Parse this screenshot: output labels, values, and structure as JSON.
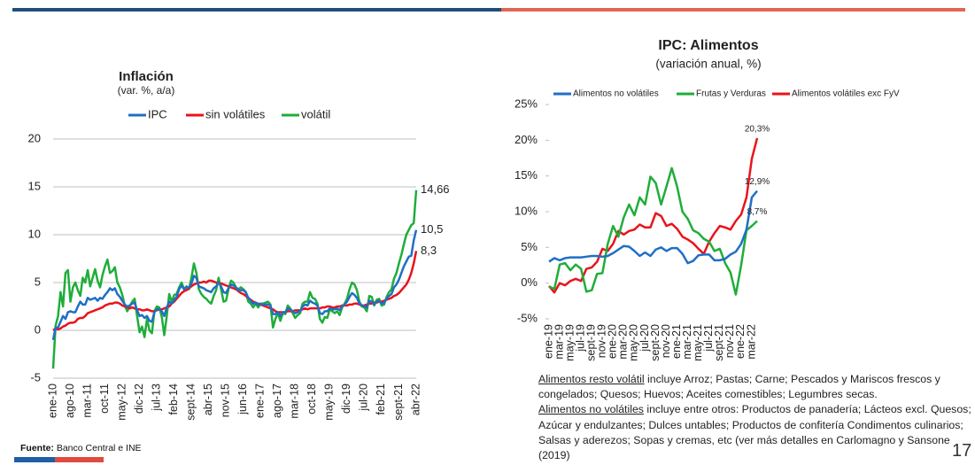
{
  "chart_data": [
    {
      "type": "line",
      "title": "Inflación",
      "subtitle": "(var. %, a/a)",
      "categories": [
        "ene-10",
        null,
        null,
        null,
        null,
        null,
        null,
        "ago-10",
        null,
        null,
        null,
        null,
        null,
        null,
        "mar-11",
        null,
        null,
        null,
        null,
        null,
        null,
        "oct-11",
        null,
        null,
        null,
        null,
        null,
        null,
        "may-12",
        null,
        null,
        null,
        null,
        null,
        null,
        "dic-12",
        null,
        null,
        null,
        null,
        null,
        null,
        "jul-13",
        null,
        null,
        null,
        null,
        null,
        null,
        "feb-14",
        null,
        null,
        null,
        null,
        null,
        null,
        "sept-14",
        null,
        null,
        null,
        null,
        null,
        null,
        "abr-15",
        null,
        null,
        null,
        null,
        null,
        null,
        "nov-15",
        null,
        null,
        null,
        null,
        null,
        null,
        "jun-16",
        null,
        null,
        null,
        null,
        null,
        null,
        "ene-17",
        null,
        null,
        null,
        null,
        null,
        null,
        "ago-17",
        null,
        null,
        null,
        null,
        null,
        null,
        "mar-18",
        null,
        null,
        null,
        null,
        null,
        null,
        "oct-18",
        null,
        null,
        null,
        null,
        null,
        null,
        "may-19",
        null,
        null,
        null,
        null,
        null,
        null,
        "dic-19",
        null,
        null,
        null,
        null,
        null,
        null,
        "jul-20",
        null,
        null,
        null,
        null,
        null,
        null,
        "feb-21",
        null,
        null,
        null,
        null,
        null,
        null,
        "sept-21",
        null,
        null,
        null,
        null,
        null,
        null,
        "abr-22"
      ],
      "series": [
        {
          "name": "IPC",
          "color": "#1f6fc5",
          "values": [
            -1.0,
            0.3,
            0.3,
            0.9,
            1.5,
            1.2,
            1.9,
            2.0,
            1.9,
            1.9,
            2.5,
            3.0,
            2.7,
            2.7,
            3.4,
            3.2,
            3.3,
            3.4,
            3.1,
            3.4,
            3.3,
            3.7,
            4.0,
            4.4,
            4.2,
            4.4,
            3.8,
            3.5,
            3.1,
            2.7,
            2.5,
            2.6,
            2.8,
            2.9,
            2.1,
            1.5,
            1.6,
            1.3,
            1.5,
            1.0,
            0.9,
            1.9,
            2.2,
            2.2,
            2.0,
            1.5,
            2.4,
            3.0,
            2.8,
            3.2,
            3.5,
            4.3,
            4.7,
            4.3,
            4.5,
            4.5,
            4.9,
            5.7,
            5.5,
            4.6,
            4.5,
            4.4,
            4.2,
            4.1,
            4.0,
            4.4,
            4.6,
            5.0,
            4.6,
            4.0,
            3.9,
            4.4,
            4.8,
            4.7,
            4.5,
            4.2,
            4.2,
            4.2,
            4.0,
            3.4,
            3.1,
            2.8,
            2.9,
            2.7,
            2.8,
            2.7,
            2.7,
            2.7,
            2.6,
            1.7,
            1.7,
            1.9,
            1.5,
            1.9,
            1.9,
            2.3,
            2.2,
            2.0,
            1.8,
            1.9,
            2.0,
            2.5,
            2.7,
            2.6,
            3.1,
            2.9,
            2.8,
            2.6,
            1.8,
            1.7,
            2.0,
            2.0,
            2.3,
            2.2,
            2.2,
            2.3,
            2.1,
            2.5,
            2.7,
            3.0,
            3.5,
            3.9,
            3.7,
            3.4,
            2.8,
            2.6,
            2.5,
            2.4,
            3.1,
            3.0,
            2.7,
            3.0,
            3.1,
            2.8,
            2.9,
            3.3,
            3.6,
            3.8,
            4.5,
            4.8,
            5.3,
            6.0,
            6.7,
            7.2,
            7.7,
            7.8,
            9.4,
            10.5
          ],
          "value_labels": {
            "147": "10,5"
          }
        },
        {
          "name": "sin volátiles",
          "color": "#e8141b",
          "values": [
            0.0,
            0.2,
            0.1,
            0.2,
            0.4,
            0.5,
            0.7,
            0.8,
            0.8,
            0.9,
            1.2,
            1.3,
            1.3,
            1.5,
            1.8,
            1.9,
            2.0,
            2.1,
            2.2,
            2.3,
            2.4,
            2.6,
            2.7,
            2.8,
            2.8,
            2.9,
            2.9,
            2.8,
            2.6,
            2.5,
            2.4,
            2.3,
            2.4,
            2.3,
            2.2,
            2.2,
            2.1,
            2.1,
            2.2,
            2.1,
            2.0,
            2.0,
            2.1,
            2.2,
            2.2,
            2.3,
            2.4,
            2.5,
            2.8,
            3.0,
            3.3,
            3.6,
            3.9,
            4.1,
            4.2,
            4.4,
            4.6,
            4.8,
            4.9,
            5.0,
            5.0,
            5.1,
            5.0,
            5.2,
            5.2,
            5.1,
            5.0,
            4.9,
            4.9,
            4.8,
            4.7,
            4.6,
            4.5,
            4.4,
            4.3,
            4.1,
            3.9,
            3.8,
            3.6,
            3.4,
            3.2,
            3.0,
            2.9,
            2.8,
            2.7,
            2.6,
            2.5,
            2.4,
            2.3,
            2.2,
            2.0,
            1.9,
            1.9,
            1.9,
            1.9,
            2.0,
            2.0,
            2.0,
            2.1,
            2.1,
            2.1,
            2.2,
            2.3,
            2.2,
            2.3,
            2.3,
            2.3,
            2.3,
            2.3,
            2.4,
            2.4,
            2.5,
            2.5,
            2.4,
            2.4,
            2.5,
            2.5,
            2.6,
            2.6,
            2.6,
            2.7,
            2.7,
            2.8,
            2.8,
            2.7,
            2.6,
            2.6,
            2.7,
            2.8,
            2.8,
            2.9,
            2.9,
            3.0,
            3.0,
            3.1,
            3.2,
            3.3,
            3.4,
            3.6,
            3.7,
            3.9,
            4.2,
            4.5,
            4.8,
            5.3,
            6.0,
            7.0,
            8.3
          ],
          "value_labels": {
            "147": "8,3"
          }
        },
        {
          "name": "volátil",
          "color": "#1fad3a",
          "values": [
            -4.0,
            0.5,
            1.5,
            4.0,
            2.5,
            6.0,
            6.3,
            3.0,
            4.5,
            5.0,
            4.2,
            3.6,
            5.5,
            5.0,
            6.3,
            4.6,
            5.5,
            6.4,
            5.2,
            4.5,
            5.8,
            6.7,
            7.4,
            6.0,
            6.2,
            6.6,
            5.0,
            4.5,
            3.7,
            2.6,
            2.0,
            2.5,
            3.0,
            3.3,
            1.5,
            -0.2,
            0.4,
            -0.7,
            1.2,
            0.0,
            -0.3,
            2.0,
            2.5,
            2.4,
            1.4,
            -0.5,
            1.5,
            3.8,
            3.0,
            3.7,
            3.8,
            4.5,
            5.0,
            4.3,
            4.6,
            4.3,
            5.5,
            7.0,
            6.0,
            4.3,
            3.8,
            3.5,
            3.3,
            3.0,
            2.8,
            3.6,
            4.2,
            5.5,
            4.3,
            3.0,
            3.1,
            4.3,
            5.2,
            5.0,
            4.5,
            4.3,
            4.5,
            4.3,
            4.0,
            3.0,
            2.8,
            2.4,
            2.8,
            2.4,
            2.8,
            2.8,
            2.9,
            3.0,
            2.7,
            0.3,
            1.2,
            1.8,
            1.0,
            1.8,
            1.7,
            2.6,
            2.3,
            1.8,
            1.3,
            1.6,
            1.8,
            2.8,
            3.0,
            3.0,
            4.0,
            3.4,
            3.3,
            2.8,
            1.2,
            0.8,
            1.4,
            1.3,
            2.2,
            2.0,
            1.8,
            2.0,
            1.6,
            2.4,
            2.8,
            3.3,
            4.3,
            5.0,
            4.8,
            4.2,
            3.0,
            2.5,
            2.4,
            2.0,
            3.6,
            3.5,
            2.6,
            3.2,
            3.3,
            2.6,
            2.7,
            3.5,
            4.0,
            4.3,
            5.4,
            6.0,
            7.0,
            7.9,
            9.0,
            10.0,
            10.5,
            11.0,
            11.2,
            14.66
          ],
          "value_labels": {
            "147": "14,66"
          }
        }
      ],
      "ylim": [
        -5,
        20
      ],
      "yticks": [
        -5,
        0,
        5,
        10,
        15,
        20
      ],
      "grid": true
    },
    {
      "type": "line",
      "title": "IPC: Alimentos",
      "subtitle": "(variación anual, %)",
      "categories": [
        "ene-19",
        null,
        "mar-19",
        null,
        "may-19",
        null,
        "jul-19",
        null,
        "sept-19",
        null,
        "nov-19",
        null,
        "ene-20",
        null,
        "mar-20",
        null,
        "may-20",
        null,
        "jul-20",
        null,
        "sept-20",
        null,
        "nov-20",
        null,
        "ene-21",
        null,
        "mar-21",
        null,
        "may-21",
        null,
        "jul-21",
        null,
        "sept-21",
        null,
        "nov-21",
        null,
        "ene-22",
        null,
        "mar-22",
        null
      ],
      "series": [
        {
          "name": "Alimentos no volátiles",
          "color": "#1f6fc5",
          "values": [
            3.0,
            3.5,
            3.2,
            3.5,
            3.6,
            3.6,
            3.6,
            3.7,
            3.8,
            3.8,
            3.7,
            3.8,
            4.2,
            4.7,
            5.2,
            5.1,
            4.5,
            3.8,
            4.3,
            3.8,
            4.7,
            5.0,
            4.5,
            4.9,
            4.9,
            4.1,
            2.8,
            3.1,
            3.9,
            4.0,
            4.0,
            3.2,
            3.2,
            3.4,
            4.0,
            4.4,
            5.5,
            7.5,
            12.0,
            12.9
          ],
          "value_labels": {
            "39": "12,9%"
          }
        },
        {
          "name": "Frutas y Verduras",
          "color": "#1fad3a",
          "values": [
            -0.5,
            -0.8,
            2.6,
            2.8,
            1.8,
            2.6,
            2.0,
            -1.2,
            -1.0,
            1.3,
            1.4,
            5.5,
            8.0,
            6.5,
            9.2,
            11.0,
            9.5,
            12.0,
            11.0,
            14.9,
            14.0,
            11.0,
            13.5,
            16.1,
            13.5,
            10.0,
            9.0,
            7.4,
            7.0,
            6.2,
            5.8,
            4.5,
            4.8,
            2.8,
            1.5,
            -1.6,
            2.5,
            7.4,
            8.0,
            8.7
          ],
          "value_labels": {
            "39": "8,7%"
          }
        },
        {
          "name": "Alimentos volátiles exc FyV",
          "color": "#e8141b",
          "values": [
            -0.4,
            -1.3,
            0.0,
            -0.3,
            0.3,
            0.6,
            0.3,
            2.0,
            2.2,
            3.0,
            4.8,
            4.5,
            5.5,
            7.3,
            6.8,
            7.3,
            7.5,
            8.2,
            7.8,
            7.8,
            9.8,
            9.4,
            8.0,
            8.3,
            7.6,
            6.5,
            6.1,
            5.6,
            4.8,
            4.1,
            5.8,
            7.0,
            8.0,
            7.8,
            7.5,
            8.7,
            9.6,
            12.0,
            17.4,
            20.3
          ],
          "value_labels": {
            "39": "20,3%"
          }
        }
      ],
      "ylim": [
        -5,
        25
      ],
      "yticks": [
        {
          "value": -5,
          "label": "-5%"
        },
        {
          "value": 0,
          "label": "0%"
        },
        {
          "value": 5,
          "label": "5%"
        },
        {
          "value": 10,
          "label": "10%"
        },
        {
          "value": 15,
          "label": "15%"
        },
        {
          "value": 20,
          "label": "20%"
        },
        {
          "value": 25,
          "label": "25%"
        }
      ],
      "grid": false
    }
  ],
  "source": {
    "label": "Fuente:",
    "text": "Banco Central e INE"
  },
  "notes": [
    {
      "underlined": "Alimentos resto volátil",
      "text": " incluye Arroz; Pastas; Carne; Pescados y Mariscos frescos y congelados; Quesos; Huevos; Aceites comestibles; Legumbres secas."
    },
    {
      "underlined": "Alimentos no volátiles",
      "text": " incluye entre otros: Productos de panadería; Lácteos excl. Quesos; Azúcar y endulzantes; Dulces untables; Productos de confitería Condimentos culinarios; Salsas y aderezos; Sopas y cremas, etc (ver más detalles en Carlomagno y Sansone (2019)"
    }
  ],
  "page_number": "17"
}
